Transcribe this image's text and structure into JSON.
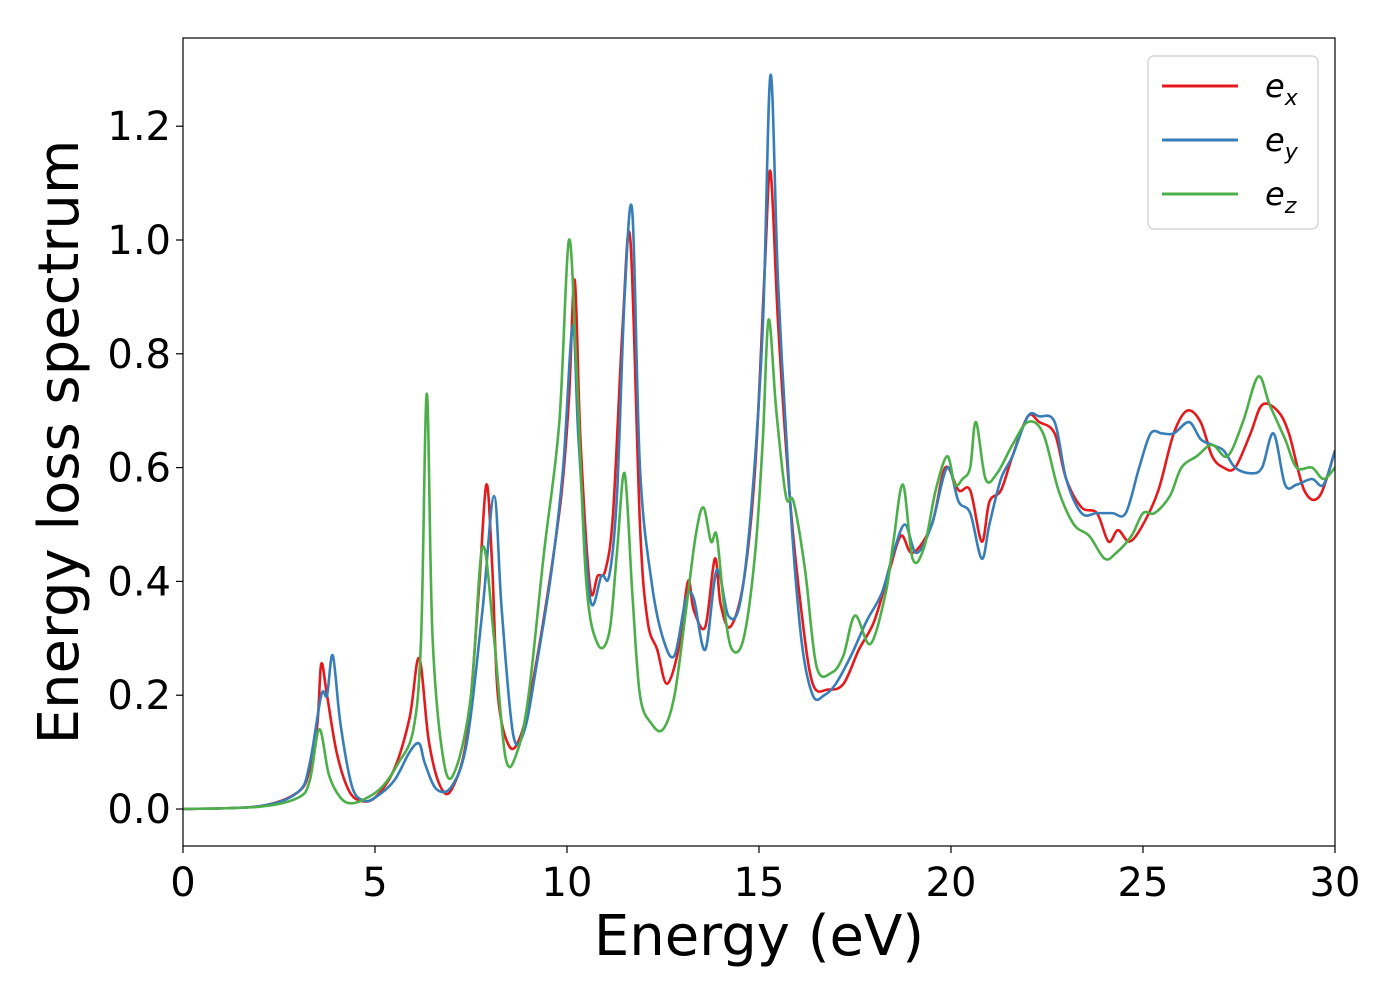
{
  "chart_data": {
    "type": "line",
    "title": "",
    "xlabel": "Energy (eV)",
    "ylabel": "Energy loss spectrum",
    "xlim": [
      0,
      30
    ],
    "ylim": [
      -0.065,
      1.355
    ],
    "xticks": [
      0,
      5,
      10,
      15,
      20,
      25,
      30
    ],
    "xtick_labels": [
      "0",
      "5",
      "10",
      "15",
      "20",
      "25",
      "30"
    ],
    "yticks": [
      0.0,
      0.2,
      0.4,
      0.6,
      0.8,
      1.0,
      1.2
    ],
    "ytick_labels": [
      "0.0",
      "0.2",
      "0.4",
      "0.6",
      "0.8",
      "1.0",
      "1.2"
    ],
    "grid": false,
    "legend_position": "top-right",
    "series": [
      {
        "name": "e_x",
        "label_base": "e",
        "label_sub": "x",
        "color": "#e41a1c",
        "x": [
          0,
          2,
          3,
          3.3,
          3.5,
          3.6,
          3.75,
          4.0,
          4.3,
          4.6,
          5.0,
          5.5,
          5.9,
          6.15,
          6.4,
          6.7,
          7.0,
          7.4,
          7.7,
          7.9,
          8.05,
          8.2,
          8.5,
          8.8,
          9.1,
          9.5,
          9.85,
          10.05,
          10.2,
          10.35,
          10.6,
          10.8,
          11.0,
          11.2,
          11.45,
          11.65,
          11.9,
          12.1,
          12.35,
          12.6,
          12.9,
          13.15,
          13.3,
          13.6,
          13.85,
          14.0,
          14.25,
          14.6,
          14.9,
          15.15,
          15.3,
          15.5,
          15.8,
          16.1,
          16.4,
          16.8,
          17.2,
          17.6,
          18.0,
          18.4,
          18.7,
          19.0,
          19.5,
          19.85,
          20.2,
          20.5,
          20.8,
          21.0,
          21.3,
          21.6,
          22.0,
          22.3,
          22.7,
          23.0,
          23.4,
          23.8,
          24.1,
          24.35,
          24.65,
          25.0,
          25.4,
          25.8,
          26.15,
          26.5,
          26.8,
          27.1,
          27.4,
          27.8,
          28.1,
          28.5,
          28.8,
          29.2,
          29.6,
          30.0
        ],
        "y": [
          0.0,
          0.005,
          0.03,
          0.07,
          0.15,
          0.255,
          0.2,
          0.1,
          0.035,
          0.015,
          0.02,
          0.07,
          0.16,
          0.265,
          0.12,
          0.04,
          0.035,
          0.13,
          0.38,
          0.57,
          0.43,
          0.2,
          0.11,
          0.13,
          0.22,
          0.38,
          0.55,
          0.72,
          0.93,
          0.65,
          0.39,
          0.41,
          0.42,
          0.52,
          0.85,
          1.0,
          0.5,
          0.33,
          0.28,
          0.22,
          0.28,
          0.4,
          0.35,
          0.32,
          0.44,
          0.36,
          0.32,
          0.4,
          0.6,
          0.95,
          1.12,
          0.85,
          0.55,
          0.35,
          0.22,
          0.21,
          0.22,
          0.28,
          0.33,
          0.42,
          0.48,
          0.45,
          0.5,
          0.6,
          0.56,
          0.56,
          0.47,
          0.54,
          0.56,
          0.62,
          0.69,
          0.68,
          0.66,
          0.58,
          0.53,
          0.52,
          0.47,
          0.49,
          0.47,
          0.5,
          0.56,
          0.66,
          0.7,
          0.68,
          0.62,
          0.6,
          0.6,
          0.66,
          0.71,
          0.7,
          0.66,
          0.56,
          0.55,
          0.63
        ]
      },
      {
        "name": "e_y",
        "label_base": "e",
        "label_sub": "y",
        "color": "#377eb8",
        "x": [
          0,
          2,
          3,
          3.3,
          3.6,
          3.75,
          3.9,
          4.1,
          4.4,
          4.7,
          5.0,
          5.5,
          5.9,
          6.15,
          6.3,
          6.6,
          7.0,
          7.4,
          7.8,
          8.1,
          8.3,
          8.6,
          8.9,
          9.2,
          9.6,
          9.9,
          10.15,
          10.3,
          10.6,
          10.9,
          11.1,
          11.3,
          11.5,
          11.7,
          11.9,
          12.2,
          12.5,
          12.8,
          13.1,
          13.3,
          13.6,
          13.9,
          14.2,
          14.5,
          14.8,
          15.1,
          15.3,
          15.5,
          15.8,
          16.1,
          16.4,
          16.7,
          17.0,
          17.4,
          17.8,
          18.2,
          18.5,
          18.8,
          19.1,
          19.5,
          19.9,
          20.2,
          20.5,
          20.8,
          21.0,
          21.3,
          21.6,
          22.0,
          22.3,
          22.7,
          23.0,
          23.4,
          23.8,
          24.2,
          24.55,
          24.9,
          25.2,
          25.5,
          25.8,
          26.2,
          26.5,
          26.8,
          27.1,
          27.4,
          27.8,
          28.1,
          28.4,
          28.7,
          29.0,
          29.4,
          29.7,
          30.0
        ],
        "y": [
          0.0,
          0.005,
          0.03,
          0.08,
          0.2,
          0.2,
          0.27,
          0.15,
          0.04,
          0.015,
          0.02,
          0.05,
          0.1,
          0.115,
          0.08,
          0.035,
          0.04,
          0.12,
          0.35,
          0.55,
          0.35,
          0.13,
          0.14,
          0.25,
          0.42,
          0.6,
          0.85,
          0.65,
          0.37,
          0.41,
          0.41,
          0.55,
          0.9,
          1.05,
          0.6,
          0.4,
          0.3,
          0.27,
          0.37,
          0.37,
          0.28,
          0.42,
          0.34,
          0.36,
          0.53,
          0.85,
          1.29,
          0.92,
          0.55,
          0.3,
          0.2,
          0.2,
          0.22,
          0.27,
          0.33,
          0.38,
          0.45,
          0.5,
          0.45,
          0.5,
          0.6,
          0.54,
          0.52,
          0.44,
          0.5,
          0.58,
          0.62,
          0.69,
          0.69,
          0.68,
          0.58,
          0.52,
          0.52,
          0.52,
          0.52,
          0.6,
          0.66,
          0.66,
          0.66,
          0.68,
          0.65,
          0.64,
          0.63,
          0.6,
          0.59,
          0.6,
          0.66,
          0.57,
          0.57,
          0.58,
          0.57,
          0.63
        ]
      },
      {
        "name": "e_z",
        "label_base": "e",
        "label_sub": "z",
        "color": "#4daf4a",
        "x": [
          0,
          2,
          3,
          3.3,
          3.55,
          3.8,
          4.1,
          4.4,
          4.8,
          5.2,
          5.6,
          6.0,
          6.2,
          6.35,
          6.5,
          6.8,
          7.1,
          7.5,
          7.8,
          8.1,
          8.4,
          8.7,
          9.0,
          9.4,
          9.8,
          10.05,
          10.25,
          10.5,
          10.8,
          11.1,
          11.3,
          11.5,
          11.7,
          11.9,
          12.2,
          12.5,
          12.8,
          13.1,
          13.35,
          13.55,
          13.75,
          13.9,
          14.1,
          14.3,
          14.6,
          14.9,
          15.1,
          15.25,
          15.45,
          15.7,
          15.9,
          16.2,
          16.5,
          16.9,
          17.2,
          17.5,
          17.9,
          18.3,
          18.5,
          18.75,
          19.0,
          19.3,
          19.6,
          19.9,
          20.1,
          20.3,
          20.5,
          20.65,
          20.9,
          21.2,
          21.6,
          22.0,
          22.4,
          22.8,
          23.2,
          23.6,
          24.0,
          24.3,
          24.7,
          25.0,
          25.3,
          25.7,
          26.0,
          26.4,
          26.8,
          27.2,
          27.6,
          28.0,
          28.3,
          28.7,
          29.0,
          29.4,
          29.7,
          30.0
        ],
        "y": [
          0.0,
          0.004,
          0.02,
          0.05,
          0.14,
          0.06,
          0.02,
          0.01,
          0.02,
          0.04,
          0.08,
          0.14,
          0.3,
          0.73,
          0.3,
          0.08,
          0.07,
          0.2,
          0.46,
          0.3,
          0.09,
          0.1,
          0.2,
          0.45,
          0.68,
          1.0,
          0.77,
          0.4,
          0.29,
          0.31,
          0.45,
          0.59,
          0.38,
          0.2,
          0.15,
          0.14,
          0.2,
          0.35,
          0.48,
          0.53,
          0.47,
          0.48,
          0.35,
          0.28,
          0.3,
          0.45,
          0.65,
          0.86,
          0.7,
          0.55,
          0.54,
          0.42,
          0.25,
          0.24,
          0.27,
          0.34,
          0.29,
          0.38,
          0.47,
          0.57,
          0.44,
          0.46,
          0.56,
          0.62,
          0.57,
          0.58,
          0.6,
          0.68,
          0.58,
          0.59,
          0.64,
          0.68,
          0.66,
          0.56,
          0.5,
          0.48,
          0.44,
          0.45,
          0.48,
          0.52,
          0.52,
          0.55,
          0.6,
          0.62,
          0.64,
          0.62,
          0.68,
          0.76,
          0.71,
          0.65,
          0.6,
          0.6,
          0.58,
          0.6
        ]
      }
    ]
  }
}
